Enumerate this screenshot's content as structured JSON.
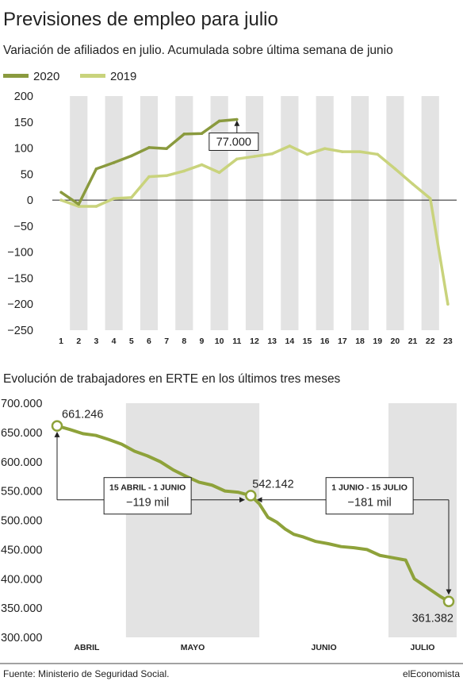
{
  "title": "Previsiones de empleo para julio",
  "footer": {
    "source": "Fuente:  Ministerio de Seguridad Social.",
    "brand": "elEconomista"
  },
  "colors": {
    "series_2020": "#8a9a3e",
    "series_2019": "#c9d37c",
    "erte": "#8ea23a",
    "bands": "#e3e3e3",
    "zero_line": "#222222"
  },
  "chart_data": [
    {
      "type": "line",
      "title": "Variación de afiliados en julio. Acumulada sobre última semana de junio",
      "x": [
        1,
        2,
        3,
        4,
        5,
        6,
        7,
        8,
        9,
        10,
        11,
        12,
        13,
        14,
        15,
        16,
        17,
        18,
        19,
        20,
        21,
        22,
        23
      ],
      "x_tick_labels": [
        "1",
        "2",
        "3",
        "4",
        "5",
        "6",
        "7",
        "8",
        "9",
        "10",
        "11",
        "12",
        "13",
        "14",
        "15",
        "16",
        "17",
        "18",
        "19",
        "20",
        "21",
        "22",
        "23"
      ],
      "ylim": [
        -250,
        200
      ],
      "y_ticks": [
        200,
        150,
        100,
        50,
        0,
        -50,
        -100,
        -150,
        -200,
        -250
      ],
      "y_tick_labels": [
        "200",
        "150",
        "100",
        "50",
        "0",
        "−50",
        "−100",
        "−150",
        "−200",
        "−250"
      ],
      "legend_position": "top-left",
      "series": [
        {
          "name": "2020",
          "color": "#8a9a3e",
          "x": [
            1,
            2,
            3,
            4,
            5,
            6,
            7,
            8,
            9,
            10,
            11
          ],
          "values": [
            15,
            -8,
            60,
            72,
            85,
            101,
            99,
            127,
            128,
            152,
            155
          ]
        },
        {
          "name": "2019",
          "color": "#c9d37c",
          "x": [
            1,
            2,
            3,
            4,
            5,
            6,
            7,
            8,
            9,
            10,
            11,
            12,
            13,
            14,
            15,
            16,
            17,
            18,
            19,
            20,
            21,
            22,
            23
          ],
          "values": [
            0,
            -12,
            -12,
            3,
            5,
            45,
            47,
            56,
            68,
            53,
            79,
            84,
            89,
            104,
            88,
            99,
            93,
            93,
            88,
            60,
            31,
            3,
            -200
          ]
        }
      ],
      "annotations": [
        {
          "text": "77.000",
          "x": 11,
          "y": 155
        }
      ]
    },
    {
      "type": "line",
      "title": "Evolución de trabajadores en ERTE en los últimos tres meses",
      "ylim": [
        300000,
        700000
      ],
      "y_ticks": [
        700000,
        650000,
        600000,
        550000,
        500000,
        450000,
        400000,
        350000,
        300000
      ],
      "y_tick_labels": [
        "700.000",
        "650.000",
        "600.000",
        "550.000",
        "500.000",
        "450.000",
        "400.000",
        "350.000",
        "300.000"
      ],
      "month_labels": [
        "ABRIL",
        "MAYO",
        "JUNIO",
        "JULIO"
      ],
      "x_dates": [
        "04-15",
        "04-18",
        "04-21",
        "04-24",
        "04-27",
        "04-30",
        "05-03",
        "05-06",
        "05-09",
        "05-12",
        "05-15",
        "05-18",
        "05-21",
        "05-24",
        "05-27",
        "05-30",
        "06-01",
        "06-03",
        "06-05",
        "06-07",
        "06-09",
        "06-11",
        "06-14",
        "06-17",
        "06-20",
        "06-23",
        "06-26",
        "06-29",
        "07-02",
        "07-05",
        "07-07",
        "07-09",
        "07-11",
        "07-13",
        "07-15"
      ],
      "series": [
        {
          "name": "",
          "color": "#8ea23a",
          "values": [
            661246,
            655000,
            648000,
            645000,
            638000,
            630000,
            618000,
            610000,
            600000,
            586000,
            575000,
            565000,
            560000,
            550000,
            548000,
            542142,
            528000,
            505000,
            497000,
            485000,
            476000,
            472000,
            464000,
            460000,
            455000,
            453000,
            450000,
            440000,
            436000,
            432000,
            400000,
            390000,
            380000,
            370000,
            361382
          ]
        }
      ],
      "point_labels": [
        {
          "text": "661.246",
          "value": 661246
        },
        {
          "text": "542.142",
          "value": 542142
        },
        {
          "text": "361.382",
          "value": 361382
        }
      ],
      "annotations": [
        {
          "title": "15 ABRIL - 1 JUNIO",
          "value": "−119 mil"
        },
        {
          "title": "1 JUNIO - 15 JULIO",
          "value": "−181 mil"
        }
      ]
    }
  ]
}
